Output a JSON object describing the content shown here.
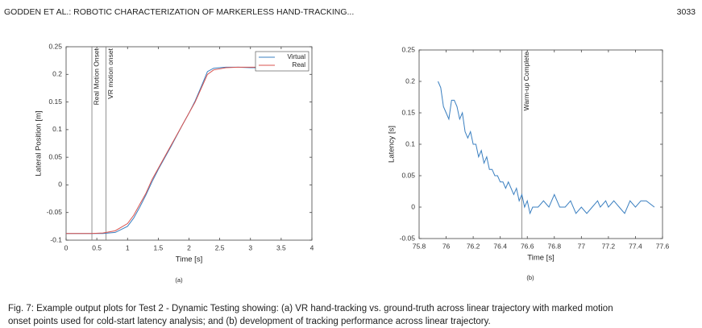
{
  "header": {
    "left": "GODDEN ET AL.: ROBOTIC CHARACTERIZATION OF MARKERLESS HAND-TRACKING...",
    "page": "3033"
  },
  "chart_data": [
    {
      "type": "line",
      "subfigure": "(a)",
      "xlabel": "Time [s]",
      "ylabel": "Lateral Position [m]",
      "xlim": [
        0,
        4
      ],
      "xticks": [
        0,
        0.5,
        1,
        1.5,
        2,
        2.5,
        3,
        3.5,
        4
      ],
      "ylim": [
        -0.1,
        0.25
      ],
      "yticks": [
        -0.1,
        -0.05,
        0,
        0.05,
        0.1,
        0.15,
        0.2,
        0.25
      ],
      "legend": "northeast",
      "vlines": [
        {
          "x": 0.42,
          "label": "Real Motion Onset"
        },
        {
          "x": 0.65,
          "label": "VR motion onset"
        }
      ],
      "x": [
        0,
        0.2,
        0.4,
        0.6,
        0.8,
        1.0,
        1.1,
        1.2,
        1.3,
        1.4,
        1.5,
        1.6,
        1.7,
        1.8,
        1.9,
        2.0,
        2.1,
        2.2,
        2.3,
        2.4,
        2.5,
        2.6,
        2.8,
        3.0,
        3.25
      ],
      "series": [
        {
          "name": "Virtual",
          "color": "#3a7fc0",
          "values": [
            -0.088,
            -0.088,
            -0.088,
            -0.088,
            -0.086,
            -0.075,
            -0.06,
            -0.04,
            -0.018,
            0.006,
            0.028,
            0.048,
            0.068,
            0.089,
            0.11,
            0.13,
            0.152,
            0.178,
            0.205,
            0.211,
            0.212,
            0.213,
            0.213,
            0.212,
            0.212
          ]
        },
        {
          "name": "Real",
          "color": "#d9534f",
          "values": [
            -0.088,
            -0.088,
            -0.088,
            -0.087,
            -0.083,
            -0.07,
            -0.055,
            -0.035,
            -0.015,
            0.01,
            0.03,
            0.05,
            0.07,
            0.09,
            0.11,
            0.13,
            0.15,
            0.175,
            0.2,
            0.208,
            0.21,
            0.212,
            0.213,
            0.213,
            0.213
          ]
        }
      ]
    },
    {
      "type": "line",
      "subfigure": "(b)",
      "xlabel": "Time [s]",
      "ylabel": "Latency [s]",
      "xlim": [
        75.8,
        77.6
      ],
      "xticks": [
        75.8,
        76,
        76.2,
        76.4,
        76.6,
        76.8,
        77,
        77.2,
        77.4,
        77.6
      ],
      "ylim": [
        -0.05,
        0.25
      ],
      "yticks": [
        -0.05,
        0,
        0.05,
        0.1,
        0.15,
        0.2,
        0.25
      ],
      "vlines": [
        {
          "x": 76.56,
          "label": "Warm-up Complete"
        }
      ],
      "x": [
        75.94,
        75.96,
        75.98,
        76.0,
        76.02,
        76.04,
        76.06,
        76.08,
        76.1,
        76.12,
        76.14,
        76.16,
        76.18,
        76.2,
        76.22,
        76.24,
        76.26,
        76.28,
        76.3,
        76.32,
        76.34,
        76.36,
        76.38,
        76.4,
        76.42,
        76.44,
        76.46,
        76.48,
        76.5,
        76.52,
        76.54,
        76.56,
        76.58,
        76.6,
        76.62,
        76.64,
        76.68,
        76.72,
        76.76,
        76.8,
        76.82,
        76.84,
        76.88,
        76.92,
        76.96,
        77.0,
        77.04,
        77.08,
        77.12,
        77.14,
        77.18,
        77.2,
        77.24,
        77.28,
        77.32,
        77.36,
        77.4,
        77.44,
        77.48,
        77.54
      ],
      "series": [
        {
          "name": "Latency",
          "color": "#3a7fc0",
          "values": [
            0.2,
            0.19,
            0.16,
            0.15,
            0.14,
            0.17,
            0.17,
            0.16,
            0.14,
            0.15,
            0.12,
            0.11,
            0.12,
            0.1,
            0.1,
            0.08,
            0.09,
            0.07,
            0.08,
            0.06,
            0.06,
            0.05,
            0.05,
            0.04,
            0.04,
            0.03,
            0.04,
            0.03,
            0.02,
            0.03,
            0.01,
            0.02,
            0,
            0.01,
            -0.01,
            0,
            0,
            0.01,
            0,
            0.02,
            0.01,
            0,
            0,
            0.01,
            -0.01,
            0,
            -0.01,
            0,
            0.01,
            0,
            0.01,
            0,
            0.01,
            0,
            -0.01,
            0.01,
            0,
            0.01,
            0.01,
            0
          ]
        }
      ]
    }
  ],
  "caption": [
    "Fig. 7: Example output plots for Test 2 - Dynamic Testing showing: (a) VR hand-tracking vs. ground-truth across linear trajectory with marked motion",
    "onset points used for cold-start latency analysis; and (b) development of tracking performance across linear trajectory."
  ]
}
